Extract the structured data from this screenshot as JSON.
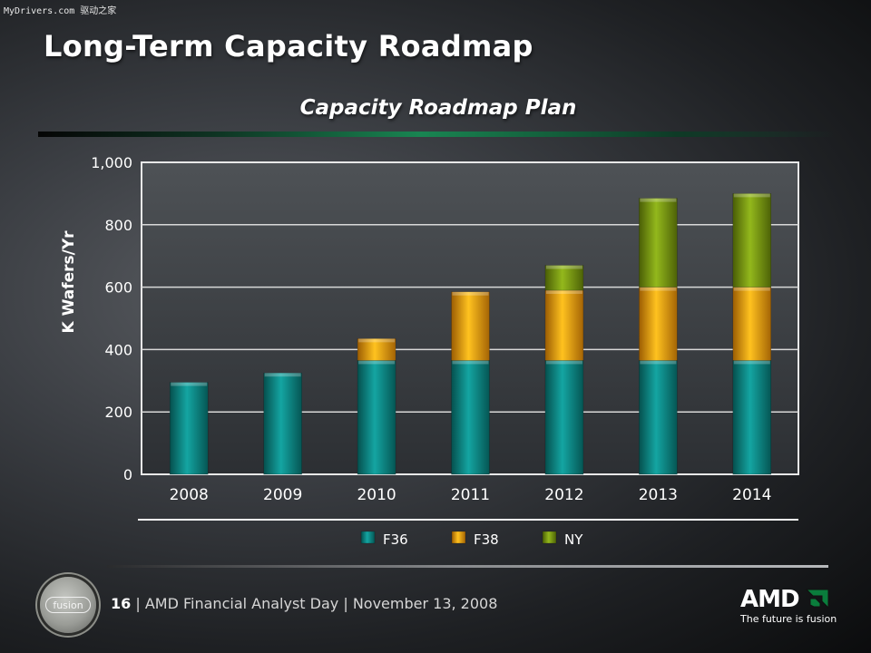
{
  "watermark": "MyDrivers.com 驱动之家",
  "slide": {
    "title": "Long-Term Capacity Roadmap",
    "page_number": "16",
    "separator": "|",
    "footer_event": "AMD Financial Analyst Day",
    "footer_date": "November 13, 2008"
  },
  "branding": {
    "fusion_label": "fusion",
    "amd_wordmark": "AMD",
    "tagline": "The future is fusion"
  },
  "colors": {
    "F36": "#0f8f8d",
    "F38": "#f0a50c",
    "NY": "#7f9e12",
    "title_rule": "#198552"
  },
  "chart_data": {
    "type": "bar",
    "stacked": true,
    "title": "Capacity Roadmap Plan",
    "xlabel": "",
    "ylabel": "K Wafers/Yr",
    "ylim": [
      0,
      1000
    ],
    "yticks": [
      "0",
      "200",
      "400",
      "600",
      "800",
      "1,000"
    ],
    "grid": true,
    "legend_position": "bottom",
    "categories": [
      "2008",
      "2009",
      "2010",
      "2011",
      "2012",
      "2013",
      "2014"
    ],
    "series": [
      {
        "name": "F36",
        "values": [
          295,
          325,
          365,
          365,
          365,
          365,
          365
        ]
      },
      {
        "name": "F38",
        "values": [
          0,
          0,
          70,
          220,
          225,
          235,
          235
        ]
      },
      {
        "name": "NY",
        "values": [
          0,
          0,
          0,
          0,
          80,
          285,
          300
        ]
      }
    ]
  }
}
